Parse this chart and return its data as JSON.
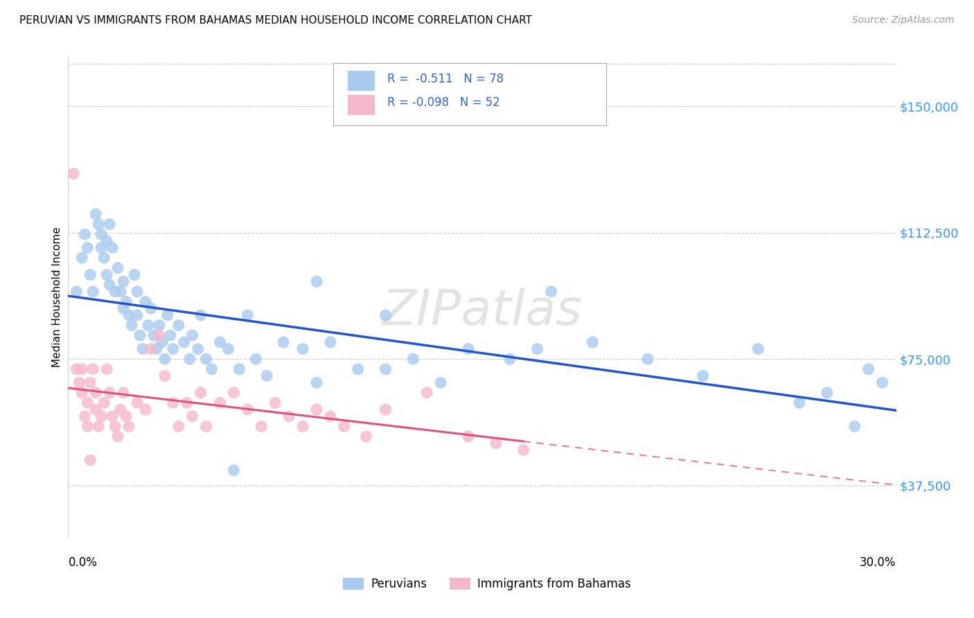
{
  "title": "PERUVIAN VS IMMIGRANTS FROM BAHAMAS MEDIAN HOUSEHOLD INCOME CORRELATION CHART",
  "source": "Source: ZipAtlas.com",
  "ylabel": "Median Household Income",
  "xmin": 0.0,
  "xmax": 0.3,
  "ymin": 22000,
  "ymax": 165000,
  "yticks": [
    37500,
    75000,
    112500,
    150000
  ],
  "ytick_labels": [
    "$37,500",
    "$75,000",
    "$112,500",
    "$150,000"
  ],
  "legend_label1": "Peruvians",
  "legend_label2": "Immigrants from Bahamas",
  "r1": "-0.511",
  "n1": "78",
  "r2": "-0.098",
  "n2": "52",
  "blue_scatter": "#A8CAEE",
  "pink_scatter": "#F4B8CE",
  "blue_line": "#2255CC",
  "pink_line": "#E05080",
  "peruvians_x": [
    0.003,
    0.005,
    0.006,
    0.007,
    0.008,
    0.009,
    0.01,
    0.011,
    0.012,
    0.012,
    0.013,
    0.014,
    0.014,
    0.015,
    0.015,
    0.016,
    0.017,
    0.018,
    0.019,
    0.02,
    0.02,
    0.021,
    0.022,
    0.023,
    0.024,
    0.025,
    0.025,
    0.026,
    0.027,
    0.028,
    0.029,
    0.03,
    0.031,
    0.032,
    0.033,
    0.034,
    0.035,
    0.036,
    0.037,
    0.038,
    0.04,
    0.042,
    0.044,
    0.045,
    0.047,
    0.048,
    0.05,
    0.052,
    0.055,
    0.058,
    0.062,
    0.065,
    0.068,
    0.072,
    0.078,
    0.085,
    0.09,
    0.095,
    0.105,
    0.115,
    0.125,
    0.135,
    0.145,
    0.16,
    0.175,
    0.19,
    0.21,
    0.23,
    0.25,
    0.265,
    0.275,
    0.285,
    0.29,
    0.295,
    0.17,
    0.09,
    0.115,
    0.06
  ],
  "peruvians_y": [
    95000,
    105000,
    112000,
    108000,
    100000,
    95000,
    118000,
    115000,
    112000,
    108000,
    105000,
    110000,
    100000,
    97000,
    115000,
    108000,
    95000,
    102000,
    95000,
    90000,
    98000,
    92000,
    88000,
    85000,
    100000,
    95000,
    88000,
    82000,
    78000,
    92000,
    85000,
    90000,
    82000,
    78000,
    85000,
    80000,
    75000,
    88000,
    82000,
    78000,
    85000,
    80000,
    75000,
    82000,
    78000,
    88000,
    75000,
    72000,
    80000,
    78000,
    72000,
    88000,
    75000,
    70000,
    80000,
    78000,
    68000,
    80000,
    72000,
    88000,
    75000,
    68000,
    78000,
    75000,
    95000,
    80000,
    75000,
    70000,
    78000,
    62000,
    65000,
    55000,
    72000,
    68000,
    78000,
    98000,
    72000,
    42000
  ],
  "bahamas_x": [
    0.002,
    0.003,
    0.004,
    0.005,
    0.005,
    0.006,
    0.007,
    0.007,
    0.008,
    0.009,
    0.01,
    0.01,
    0.011,
    0.012,
    0.013,
    0.014,
    0.015,
    0.016,
    0.017,
    0.018,
    0.019,
    0.02,
    0.021,
    0.022,
    0.025,
    0.028,
    0.03,
    0.033,
    0.035,
    0.038,
    0.04,
    0.043,
    0.045,
    0.048,
    0.05,
    0.055,
    0.06,
    0.065,
    0.07,
    0.075,
    0.08,
    0.085,
    0.09,
    0.095,
    0.1,
    0.108,
    0.115,
    0.13,
    0.145,
    0.155,
    0.165,
    0.008
  ],
  "bahamas_y": [
    130000,
    72000,
    68000,
    72000,
    65000,
    58000,
    62000,
    55000,
    68000,
    72000,
    60000,
    65000,
    55000,
    58000,
    62000,
    72000,
    65000,
    58000,
    55000,
    52000,
    60000,
    65000,
    58000,
    55000,
    62000,
    60000,
    78000,
    82000,
    70000,
    62000,
    55000,
    62000,
    58000,
    65000,
    55000,
    62000,
    65000,
    60000,
    55000,
    62000,
    58000,
    55000,
    60000,
    58000,
    55000,
    52000,
    60000,
    65000,
    52000,
    50000,
    48000,
    45000
  ]
}
